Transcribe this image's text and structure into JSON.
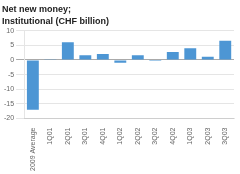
{
  "chart_data": {
    "type": "bar",
    "title": "Net new money;",
    "subtitle": "Institutional (CHF billion)",
    "categories": [
      "2009 Average",
      "1Q01",
      "2Q01",
      "3Q01",
      "4Q01",
      "1Q02",
      "2Q02",
      "3Q02",
      "4Q02",
      "1Q03",
      "2Q03",
      "3Q03"
    ],
    "values": [
      -17.0,
      0.2,
      6.0,
      1.6,
      2.0,
      -1.0,
      1.6,
      -0.4,
      2.7,
      4.0,
      1.1,
      6.5
    ],
    "color": "#4d96d4",
    "ylim": [
      -20,
      10
    ],
    "yticks": [
      -20,
      -15,
      -10,
      -5,
      0,
      5,
      10
    ],
    "grid": true
  }
}
